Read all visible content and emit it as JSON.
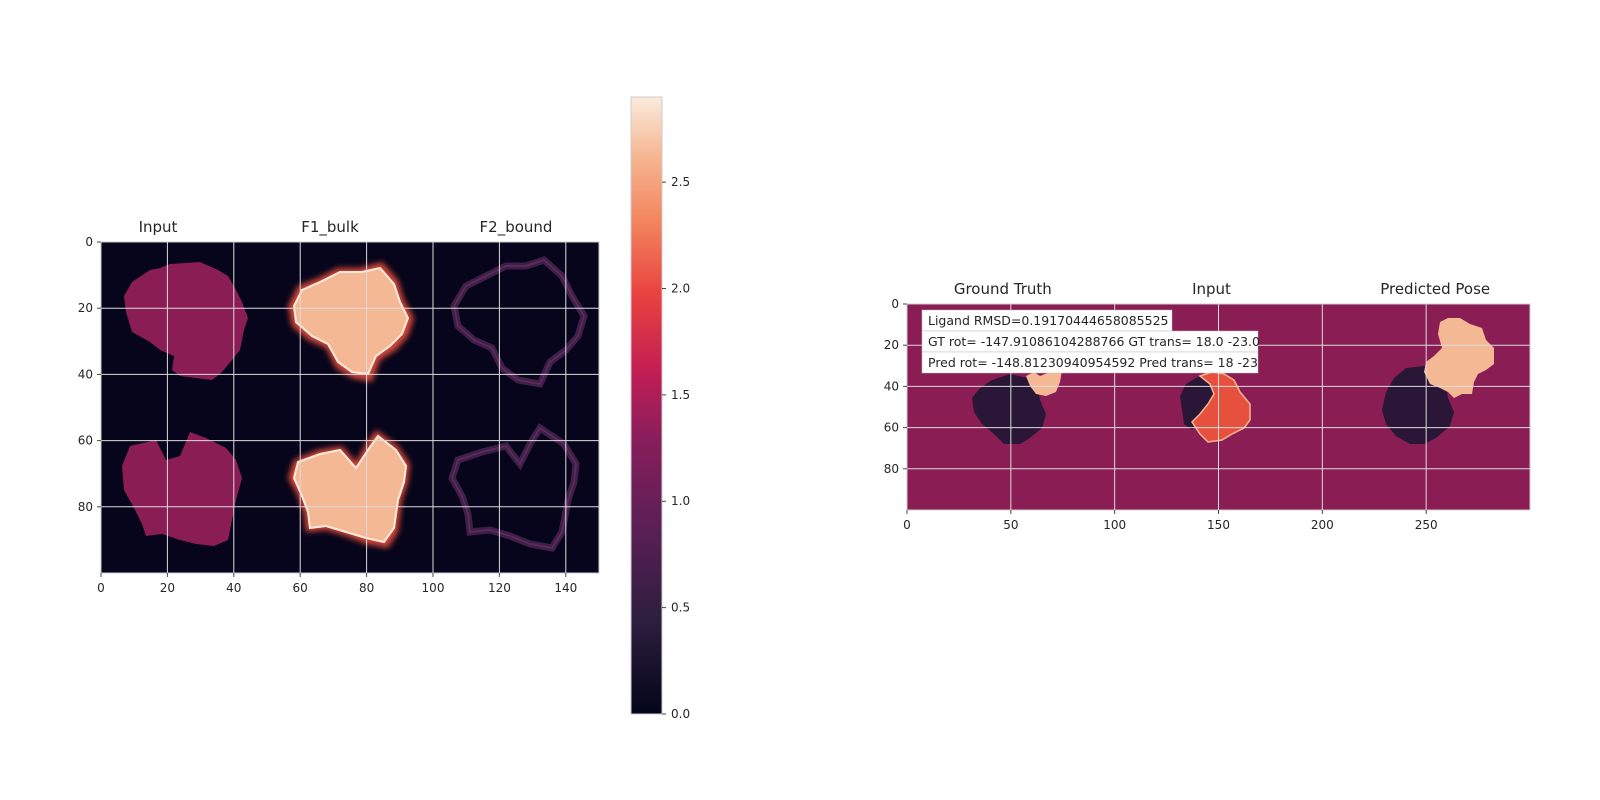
{
  "chart_data": [
    {
      "type": "heatmap",
      "panel": "features",
      "column_titles": [
        "Input",
        "F1_bulk",
        "F2_bound"
      ],
      "x_ticks": [
        0,
        20,
        40,
        60,
        80,
        100,
        120,
        140
      ],
      "y_ticks": [
        0,
        20,
        40,
        60,
        80
      ],
      "xlim": [
        0,
        150
      ],
      "ylim": [
        0,
        100
      ],
      "grid": true,
      "colorbar": {
        "ticks": [
          "0.0",
          "0.5",
          "1.0",
          "1.5",
          "2.0",
          "2.5"
        ],
        "range": [
          0,
          2.9
        ]
      }
    },
    {
      "type": "heatmap",
      "panel": "pose",
      "column_titles": [
        "Ground Truth",
        "Input",
        "Predicted Pose"
      ],
      "x_ticks": [
        0,
        50,
        100,
        150,
        200,
        250
      ],
      "y_ticks": [
        0,
        20,
        40,
        60,
        80
      ],
      "xlim": [
        0,
        300
      ],
      "ylim": [
        0,
        100
      ],
      "grid": true,
      "annotations": [
        "Ligand RMSD=0.19170444658085525",
        "GT rot= -147.91086104288766 GT trans= 18.0 -23.0",
        "Pred rot= -148.81230940954592 Pred trans= 18 -23"
      ]
    }
  ],
  "colors": {
    "background": "#07051b",
    "receptor": "#8b1d55",
    "bulk": "#f5b895",
    "bound_edge": "#3e1f47",
    "dark_shape": "#2a1636",
    "ligand_gt": "#f5b895",
    "ligand_input": "#e8503e",
    "grid": "#dcdcdc"
  }
}
